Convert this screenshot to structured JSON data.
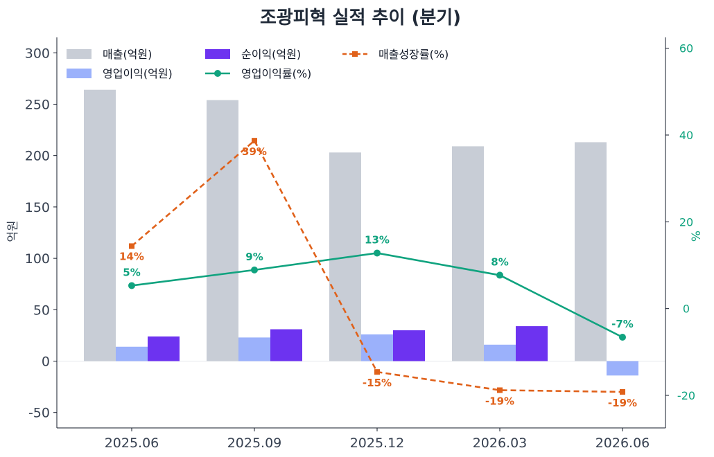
{
  "chart_data": {
    "type": "bar",
    "title": "조광피혁 실적 추이 (분기)",
    "categories": [
      "2025.06",
      "2025.09",
      "2025.12",
      "2026.03",
      "2026.06"
    ],
    "ylabel": "억원",
    "ylim": [
      -65,
      315
    ],
    "yticks": [
      -50,
      0,
      50,
      100,
      150,
      200,
      250,
      300
    ],
    "y2label": "%",
    "y2lim": [
      -27.5,
      62.5
    ],
    "y2ticks": [
      -20,
      0,
      20,
      40,
      60
    ],
    "legend_position": "top-left",
    "bar_series": [
      {
        "name": "매출(억원)",
        "color": "#c8cdd6",
        "values": [
          264,
          254,
          203,
          209,
          213
        ]
      },
      {
        "name": "영업이익(억원)",
        "color": "#9bb1fb",
        "values": [
          14,
          23,
          26,
          16,
          -14
        ]
      },
      {
        "name": "순이익(억원)",
        "color": "#6d33f0",
        "values": [
          24,
          31,
          30,
          34,
          0
        ]
      }
    ],
    "line_series": [
      {
        "name": "영업이익률(%)",
        "color": "#10a37f",
        "style": "solid",
        "marker": "circle",
        "values": [
          5.3,
          8.9,
          12.8,
          7.7,
          -6.6
        ],
        "labels": [
          "5%",
          "9%",
          "13%",
          "8%",
          "-7%"
        ]
      },
      {
        "name": "매출성장률(%)",
        "color": "#e0611a",
        "style": "dashed",
        "marker": "square",
        "values": [
          14.4,
          38.7,
          -14.6,
          -18.8,
          -19.2
        ],
        "labels": [
          "14%",
          "39%",
          "-15%",
          "-19%",
          "-19%"
        ]
      }
    ]
  }
}
